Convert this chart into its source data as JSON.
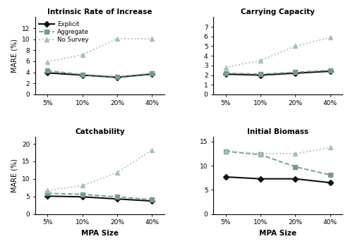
{
  "x_labels": [
    "5%",
    "10%",
    "20%",
    "40%"
  ],
  "x_positions": [
    0,
    1,
    2,
    3
  ],
  "intrinsic_rate": {
    "title": "Intrinsic Rate of Increase",
    "explicit": [
      3.9,
      3.5,
      3.1,
      3.7
    ],
    "aggregate": [
      4.3,
      3.6,
      3.2,
      3.8
    ],
    "no_survey": [
      5.9,
      7.2,
      10.1,
      10.1
    ],
    "ylim": [
      0,
      14
    ],
    "yticks": [
      0,
      2,
      4,
      6,
      8,
      10,
      12
    ]
  },
  "carrying_capacity": {
    "title": "Carrying Capacity",
    "explicit": [
      2.1,
      2.0,
      2.2,
      2.4
    ],
    "aggregate": [
      2.2,
      2.1,
      2.3,
      2.5
    ],
    "no_survey": [
      2.8,
      3.5,
      5.0,
      5.9
    ],
    "ylim": [
      0,
      8
    ],
    "yticks": [
      0,
      1,
      2,
      3,
      4,
      5,
      6,
      7
    ]
  },
  "catchability": {
    "title": "Catchability",
    "explicit": [
      5.1,
      4.9,
      4.3,
      3.7
    ],
    "aggregate": [
      5.9,
      5.6,
      4.9,
      4.1
    ],
    "no_survey": [
      6.7,
      8.1,
      11.8,
      18.3
    ],
    "ylim": [
      0,
      22
    ],
    "yticks": [
      0,
      5,
      10,
      15,
      20
    ]
  },
  "initial_biomass": {
    "title": "Initial Biomass",
    "explicit": [
      7.7,
      7.3,
      7.3,
      6.5
    ],
    "aggregate": [
      13.0,
      12.3,
      9.8,
      8.1
    ],
    "no_survey": [
      13.1,
      12.5,
      12.5,
      13.8
    ],
    "ylim": [
      0,
      16
    ],
    "yticks": [
      0,
      5,
      10,
      15
    ]
  },
  "explicit_color": "#111111",
  "aggregate_color": "#7a9a8a",
  "no_survey_color": "#aabfb5",
  "explicit_marker": "D",
  "aggregate_marker": "s",
  "no_survey_marker": "^",
  "explicit_linestyle": "-",
  "aggregate_linestyle": "--",
  "no_survey_linestyle": ":",
  "ylabel": "MARE (%)",
  "xlabel": "MPA Size",
  "legend_labels": [
    "Explicit",
    "Aggregate",
    "No Survey"
  ]
}
